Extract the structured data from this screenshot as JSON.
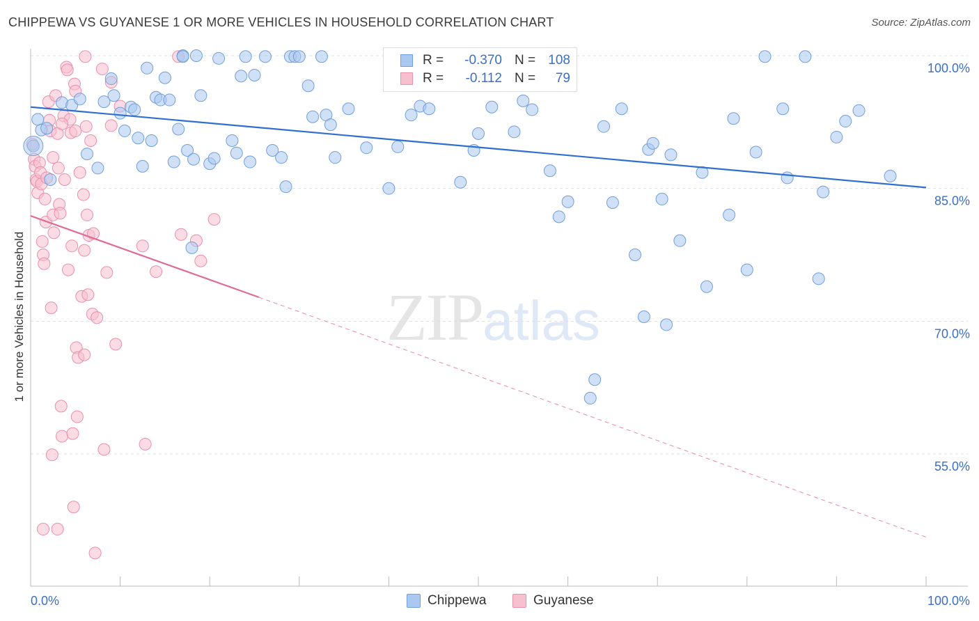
{
  "title": "CHIPPEWA VS GUYANESE 1 OR MORE VEHICLES IN HOUSEHOLD CORRELATION CHART",
  "source": "Source: ZipAtlas.com",
  "watermark": {
    "zip": "ZIP",
    "atlas": "atlas"
  },
  "colors": {
    "blue_fill": "#aac8f0",
    "blue_stroke": "#6f9fdc",
    "blue_line": "#2f6fd0",
    "pink_fill": "#f7c0cf",
    "pink_stroke": "#ea8fab",
    "pink_line": "#e06b95",
    "axis_text": "#3b6fc4",
    "grid": "#dddddd"
  },
  "legend": {
    "rows": [
      {
        "r_label": "R =",
        "r_value": "-0.370",
        "n_label": "N =",
        "n_value": "108"
      },
      {
        "r_label": "R =",
        "r_value": "-0.112",
        "n_label": "N =",
        "n_value": "79"
      }
    ]
  },
  "bottom_legend": {
    "series1": "Chippewa",
    "series2": "Guyanese"
  },
  "chart_data": {
    "type": "scatter",
    "title": "CHIPPEWA VS GUYANESE 1 OR MORE VEHICLES IN HOUSEHOLD CORRELATION CHART",
    "xlabel": "",
    "ylabel": "1 or more Vehicles in Household",
    "xlim": [
      0,
      100
    ],
    "ylim": [
      40,
      102
    ],
    "x_tick_labels": [
      "0.0%",
      "100.0%"
    ],
    "y_tick_labels": [
      "100.0%",
      "85.0%",
      "70.0%",
      "55.0%"
    ],
    "y_ticks": [
      100,
      85,
      70,
      55
    ],
    "grid": true,
    "series": [
      {
        "name": "Chippewa",
        "trend": {
          "x": [
            0,
            100
          ],
          "y": [
            94.2,
            85.1
          ]
        },
        "points": [
          [
            0.3,
            89.8
          ],
          [
            0.8,
            92.8
          ],
          [
            1.2,
            91.6
          ],
          [
            1.8,
            91.8
          ],
          [
            2.2,
            86
          ],
          [
            3.5,
            94.7
          ],
          [
            4.6,
            94.4
          ],
          [
            5.5,
            95.1
          ],
          [
            6.3,
            88.9
          ],
          [
            7.5,
            87.3
          ],
          [
            8.2,
            94.8
          ],
          [
            9.0,
            97.4
          ],
          [
            9.3,
            95.5
          ],
          [
            10.0,
            93.5
          ],
          [
            10.5,
            91.5
          ],
          [
            11.2,
            94.2
          ],
          [
            11.6,
            93.9
          ],
          [
            12.0,
            90.7
          ],
          [
            12.5,
            87.5
          ],
          [
            13.0,
            98.6
          ],
          [
            13.5,
            90.4
          ],
          [
            14.0,
            95.3
          ],
          [
            14.5,
            95.0
          ],
          [
            15.0,
            97.5
          ],
          [
            15.5,
            95.0
          ],
          [
            16.0,
            88.0
          ],
          [
            16.5,
            91.7
          ],
          [
            17.0,
            100
          ],
          [
            17.5,
            89.3
          ],
          [
            18.0,
            78.3
          ],
          [
            18.2,
            88.3
          ],
          [
            18.5,
            100
          ],
          [
            19.0,
            95.5
          ],
          [
            20.0,
            87.8
          ],
          [
            20.5,
            88.4
          ],
          [
            21.0,
            99.7
          ],
          [
            22.5,
            90.4
          ],
          [
            23.0,
            89.0
          ],
          [
            23.5,
            97.7
          ],
          [
            24.0,
            99.9
          ],
          [
            24.5,
            88.0
          ],
          [
            25.0,
            97.8
          ],
          [
            26.2,
            99.9
          ],
          [
            27.0,
            89.3
          ],
          [
            28.0,
            88.5
          ],
          [
            28.5,
            85.2
          ],
          [
            29.0,
            99.9
          ],
          [
            29.5,
            99.9
          ],
          [
            30.0,
            99.9
          ],
          [
            31.0,
            96.6
          ],
          [
            31.5,
            93.1
          ],
          [
            32.5,
            99.9
          ],
          [
            33.0,
            93.3
          ],
          [
            33.5,
            92.2
          ],
          [
            34.0,
            88.5
          ],
          [
            35.5,
            94.0
          ],
          [
            37.5,
            89.6
          ],
          [
            40.0,
            85.0
          ],
          [
            41.0,
            89.7
          ],
          [
            42.5,
            93.3
          ],
          [
            43.5,
            94.3
          ],
          [
            44.5,
            94.0
          ],
          [
            45.5,
            99.9
          ],
          [
            48.0,
            85.7
          ],
          [
            49.5,
            89.3
          ],
          [
            50.0,
            91.2
          ],
          [
            51.5,
            94.2
          ],
          [
            53.0,
            99.9
          ],
          [
            54.0,
            91.4
          ],
          [
            55.0,
            94.9
          ],
          [
            56.0,
            93.9
          ],
          [
            58.0,
            87.0
          ],
          [
            60.0,
            83.5
          ],
          [
            59.0,
            81.8
          ],
          [
            64.0,
            92.0
          ],
          [
            65.0,
            83.4
          ],
          [
            66.0,
            94.0
          ],
          [
            67.5,
            77.5
          ],
          [
            68.5,
            70.5
          ],
          [
            69.0,
            89.4
          ],
          [
            69.5,
            90.1
          ],
          [
            70.5,
            83.8
          ],
          [
            71.0,
            69.6
          ],
          [
            71.5,
            88.8
          ],
          [
            72.5,
            79.1
          ],
          [
            75.0,
            86.8
          ],
          [
            75.5,
            73.9
          ],
          [
            78.0,
            82.0
          ],
          [
            78.5,
            92.9
          ],
          [
            80.0,
            75.8
          ],
          [
            81.0,
            89.1
          ],
          [
            82.0,
            99.9
          ],
          [
            84.0,
            94.0
          ],
          [
            84.5,
            86.2
          ],
          [
            86.5,
            99.9
          ],
          [
            88.0,
            74.8
          ],
          [
            88.5,
            84.6
          ],
          [
            90.0,
            90.8
          ],
          [
            91.0,
            92.6
          ],
          [
            92.5,
            93.8
          ],
          [
            96.0,
            86.4
          ],
          [
            62.5,
            61.3
          ],
          [
            63.0,
            63.4
          ],
          [
            47.0,
            99.9
          ],
          [
            41.5,
            99.9
          ],
          [
            42.0,
            99.6
          ],
          [
            46.0,
            99.9
          ],
          [
            17.0,
            99.9
          ]
        ]
      },
      {
        "name": "Guyanese",
        "trend": {
          "x": [
            0,
            25.5
          ],
          "y": [
            81.9,
            72.7
          ]
        },
        "trend_dashed": {
          "x": [
            25.5,
            100
          ],
          "y": [
            72.7,
            45.6
          ]
        },
        "points": [
          [
            0.2,
            90.0
          ],
          [
            0.4,
            88.3
          ],
          [
            0.5,
            87.5
          ],
          [
            0.6,
            86.0
          ],
          [
            0.7,
            85.8
          ],
          [
            0.8,
            84.5
          ],
          [
            1.0,
            87.9
          ],
          [
            1.1,
            86.8
          ],
          [
            1.2,
            85.5
          ],
          [
            1.3,
            79.0
          ],
          [
            1.4,
            77.5
          ],
          [
            1.5,
            76.5
          ],
          [
            1.6,
            83.8
          ],
          [
            1.7,
            81.2
          ],
          [
            1.8,
            86.2
          ],
          [
            2.0,
            94.8
          ],
          [
            2.1,
            92.7
          ],
          [
            2.2,
            91.5
          ],
          [
            2.3,
            71.5
          ],
          [
            2.4,
            54.9
          ],
          [
            2.5,
            82.0
          ],
          [
            2.6,
            80.0
          ],
          [
            2.8,
            95.5
          ],
          [
            3.0,
            91.2
          ],
          [
            3.1,
            87.3
          ],
          [
            3.2,
            83.2
          ],
          [
            3.3,
            82.2
          ],
          [
            3.4,
            60.4
          ],
          [
            3.5,
            57.0
          ],
          [
            3.7,
            93.2
          ],
          [
            3.8,
            86.0
          ],
          [
            4.0,
            98.7
          ],
          [
            4.1,
            98.4
          ],
          [
            4.2,
            75.8
          ],
          [
            4.4,
            92.8
          ],
          [
            4.5,
            91.3
          ],
          [
            4.6,
            78.5
          ],
          [
            4.7,
            57.3
          ],
          [
            4.8,
            49.0
          ],
          [
            4.9,
            96.8
          ],
          [
            5.0,
            91.5
          ],
          [
            5.1,
            67.0
          ],
          [
            5.2,
            59.2
          ],
          [
            5.3,
            65.9
          ],
          [
            5.5,
            86.8
          ],
          [
            5.7,
            72.8
          ],
          [
            5.9,
            84.3
          ],
          [
            6.0,
            66.2
          ],
          [
            6.1,
            99.9
          ],
          [
            6.2,
            92.0
          ],
          [
            6.3,
            82.0
          ],
          [
            6.4,
            73.0
          ],
          [
            6.5,
            79.7
          ],
          [
            6.7,
            90.4
          ],
          [
            6.9,
            70.8
          ],
          [
            7.0,
            79.9
          ],
          [
            7.2,
            43.8
          ],
          [
            7.4,
            70.4
          ],
          [
            8.0,
            98.5
          ],
          [
            8.2,
            55.5
          ],
          [
            8.5,
            75.5
          ],
          [
            9.0,
            97.0
          ],
          [
            9.5,
            67.4
          ],
          [
            12.5,
            78.5
          ],
          [
            12.8,
            56.1
          ],
          [
            14.0,
            75.6
          ],
          [
            16.5,
            99.9
          ],
          [
            16.8,
            79.8
          ],
          [
            18.5,
            79.1
          ],
          [
            19.0,
            76.8
          ],
          [
            20.5,
            81.5
          ],
          [
            1.4,
            46.5
          ],
          [
            3.0,
            46.5
          ],
          [
            2.5,
            88.5
          ],
          [
            3.5,
            92.3
          ],
          [
            6.0,
            78.0
          ],
          [
            5.0,
            96.0
          ],
          [
            9.0,
            92.1
          ],
          [
            10.0,
            94.3
          ]
        ]
      }
    ]
  }
}
